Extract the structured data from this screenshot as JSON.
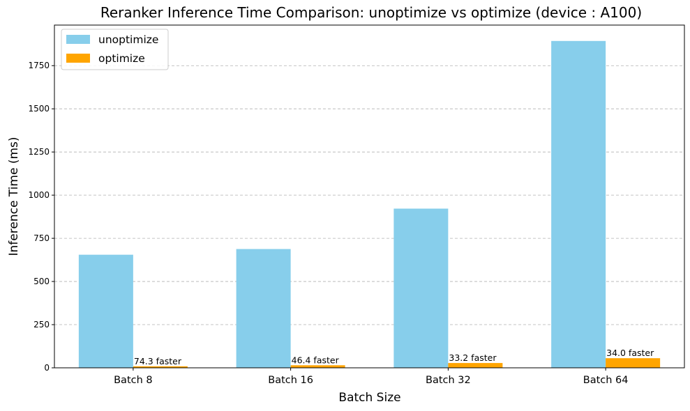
{
  "chart_data": {
    "type": "bar",
    "title": "Reranker Inference Time Comparison: unoptimize vs optimize (device : A100)",
    "xlabel": "Batch Size",
    "ylabel": "Inference Time (ms)",
    "categories": [
      "Batch 8",
      "Batch 16",
      "Batch 32",
      "Batch 64"
    ],
    "series": [
      {
        "name": "unoptimize",
        "color": "#87CEEB",
        "values": [
          655,
          688,
          922,
          1893
        ]
      },
      {
        "name": "optimize",
        "color": "#FFA500",
        "values": [
          8.8,
          14.8,
          27.8,
          55.7
        ]
      }
    ],
    "annotations": [
      "74.3 faster",
      "46.4 faster",
      "33.2 faster",
      "34.0 faster"
    ],
    "ylim": [
      0,
      1985
    ],
    "yticks": [
      0,
      250,
      500,
      750,
      1000,
      1250,
      1500,
      1750
    ],
    "grid": "y-dashed",
    "legend_position": "top-left"
  }
}
